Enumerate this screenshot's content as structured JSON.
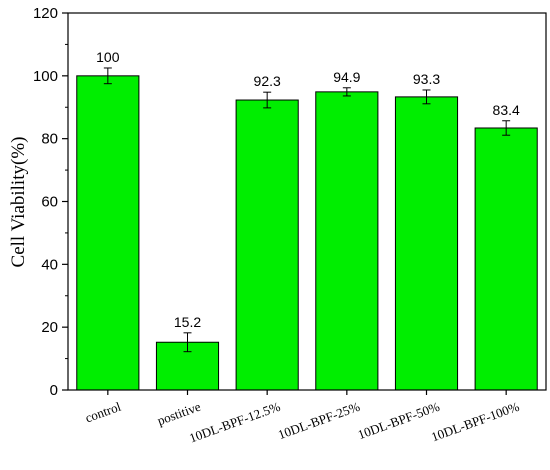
{
  "chart_data": {
    "type": "bar",
    "title": "",
    "xlabel": "",
    "ylabel": "Cell Viability(%)",
    "categories": [
      "control",
      "postitive",
      "10DL-BPF-12.5%",
      "10DL-BPF-25%",
      "10DL-BPF-50%",
      "10DL-BPF-100%"
    ],
    "values": [
      100,
      15.2,
      92.3,
      94.9,
      93.3,
      83.4
    ],
    "data_labels": [
      "100",
      "15.2",
      "92.3",
      "94.9",
      "93.3",
      "83.4"
    ],
    "errors": [
      2.5,
      3,
      2.5,
      1.3,
      2.2,
      2.3
    ],
    "ylim": [
      0,
      120
    ],
    "yticks": [
      0,
      20,
      40,
      60,
      80,
      100,
      120
    ],
    "ytick_labels": [
      "0",
      "20",
      "40",
      "60",
      "80",
      "100",
      "120"
    ],
    "grid": false,
    "legend": "none",
    "bar_color": "#00ee00",
    "bar_edge_color": "#000000"
  }
}
